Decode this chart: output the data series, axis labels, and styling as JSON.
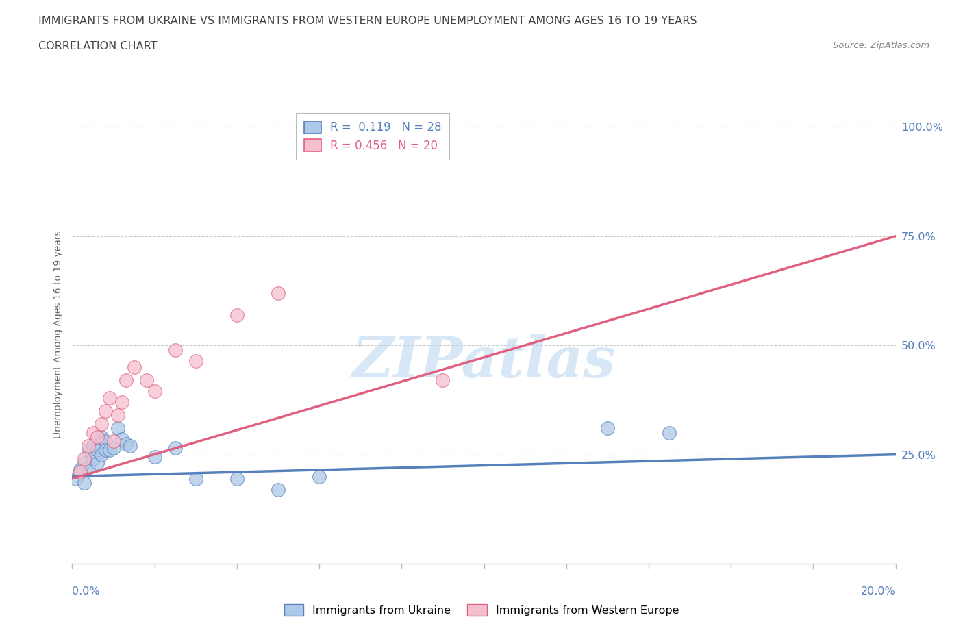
{
  "title_line1": "IMMIGRANTS FROM UKRAINE VS IMMIGRANTS FROM WESTERN EUROPE UNEMPLOYMENT AMONG AGES 16 TO 19 YEARS",
  "title_line2": "CORRELATION CHART",
  "source": "Source: ZipAtlas.com",
  "ylabel": "Unemployment Among Ages 16 to 19 years",
  "ytick_labels": [
    "25.0%",
    "50.0%",
    "75.0%",
    "100.0%"
  ],
  "ytick_values": [
    0.25,
    0.5,
    0.75,
    1.0
  ],
  "watermark": "ZIPatlas",
  "R_ukraine": 0.119,
  "N_ukraine": 28,
  "R_western": 0.456,
  "N_western": 20,
  "color_ukraine": "#adc8e8",
  "color_western": "#f5bfce",
  "line_color_ukraine": "#5580bb",
  "line_color_western": "#e06080",
  "ukraine_x": [
    0.001,
    0.002,
    0.003,
    0.003,
    0.004,
    0.004,
    0.005,
    0.005,
    0.006,
    0.006,
    0.007,
    0.007,
    0.008,
    0.008,
    0.009,
    0.01,
    0.011,
    0.012,
    0.013,
    0.014,
    0.02,
    0.025,
    0.03,
    0.04,
    0.05,
    0.06,
    0.13,
    0.145
  ],
  "ukraine_y": [
    0.195,
    0.215,
    0.23,
    0.185,
    0.26,
    0.22,
    0.27,
    0.24,
    0.26,
    0.23,
    0.29,
    0.25,
    0.28,
    0.26,
    0.26,
    0.265,
    0.31,
    0.285,
    0.275,
    0.27,
    0.245,
    0.265,
    0.195,
    0.195,
    0.17,
    0.2,
    0.31,
    0.3
  ],
  "western_x": [
    0.002,
    0.003,
    0.004,
    0.005,
    0.006,
    0.007,
    0.008,
    0.009,
    0.01,
    0.011,
    0.012,
    0.013,
    0.015,
    0.018,
    0.02,
    0.025,
    0.03,
    0.04,
    0.05,
    0.09
  ],
  "western_y": [
    0.21,
    0.24,
    0.27,
    0.3,
    0.29,
    0.32,
    0.35,
    0.38,
    0.28,
    0.34,
    0.37,
    0.42,
    0.45,
    0.42,
    0.395,
    0.49,
    0.465,
    0.57,
    0.62,
    0.42
  ],
  "line_ukraine_x0": 0.0,
  "line_ukraine_y0": 0.2,
  "line_ukraine_x1": 0.2,
  "line_ukraine_y1": 0.25,
  "line_western_x0": 0.0,
  "line_western_y0": 0.195,
  "line_western_x1": 0.2,
  "line_western_y1": 0.75,
  "xmin": 0.0,
  "xmax": 0.2,
  "ymin": 0.0,
  "ymax": 1.05,
  "background_color": "#ffffff",
  "grid_color": "#cccccc",
  "title_color": "#555555",
  "axis_label_color": "#5580bb",
  "legend_text_ukraine": "R =  0.119   N = 28",
  "legend_text_western": "R = 0.456   N = 20"
}
